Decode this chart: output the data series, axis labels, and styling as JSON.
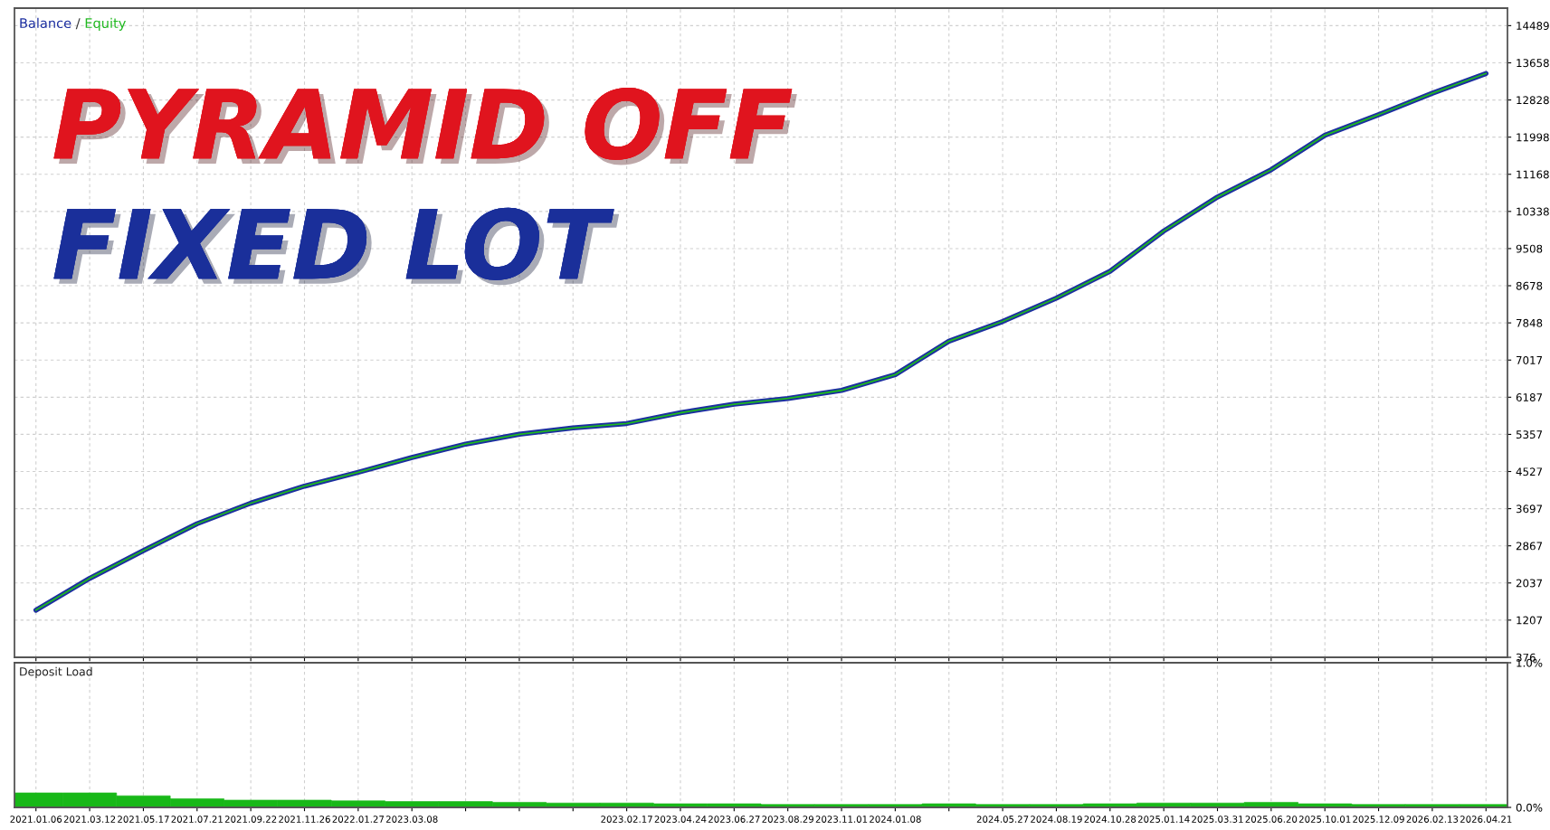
{
  "chart_data": [
    {
      "type": "line",
      "legend": "top left",
      "grid": true,
      "tick_labels": "y",
      "annotations": [
        "/",
        "PYRAMID OFF",
        "FIXED LOT"
      ],
      "ylim": [
        376,
        14880
      ],
      "yticks": [
        376,
        1207,
        2037,
        2867,
        3697,
        4527,
        5357,
        6187,
        7017,
        7848,
        8678,
        9508,
        10338,
        11168,
        11998,
        12828,
        13658,
        14489
      ],
      "categories": [
        "2021.01.06",
        "2021.03.12",
        "2021.05.17",
        "2021.07.21",
        "2021.09.22",
        "2021.11.26",
        "2022.01.27",
        "2023.03.08",
        null,
        null,
        null,
        "2023.02.17",
        "2023.04.24",
        "2023.06.27",
        "2023.08.29",
        "2023.11.01",
        "2024.01.08",
        null,
        "2024.05.27",
        "2024.08.19",
        "2024.10.28",
        "2025.01.14",
        "2025.03.31",
        "2025.06.20",
        "2025.10.01",
        "2025.12.09",
        "2026.02.13",
        "2026.04.21"
      ],
      "series": [
        {
          "name": "Balance",
          "color": "#1c2fa0",
          "values": [
            1430,
            2140,
            2760,
            3360,
            3820,
            4200,
            4510,
            4840,
            5140,
            5360,
            5500,
            5600,
            5840,
            6030,
            6160,
            6340,
            6690,
            7440,
            7880,
            8400,
            9000,
            9900,
            10660,
            11270,
            12040,
            12500,
            12980,
            13420
          ]
        },
        {
          "name": "Equity",
          "color": "#1fb81f",
          "values": [
            1430,
            2140,
            2760,
            3360,
            3820,
            4200,
            4510,
            4840,
            5140,
            5360,
            5500,
            5600,
            5840,
            6030,
            6160,
            6340,
            6690,
            7440,
            7880,
            8400,
            9000,
            9900,
            10660,
            11270,
            12040,
            12500,
            12980,
            13420
          ]
        }
      ]
    },
    {
      "type": "bar",
      "title": "Deposit Load",
      "grid": true,
      "ylim": [
        0,
        1
      ],
      "yticks": [
        {
          "value": 0,
          "label": "0.0%"
        },
        {
          "value": 1,
          "label": "1.0%"
        }
      ],
      "categories": [
        "2021.01.06",
        "2021.03.12",
        "2021.05.17",
        "2021.07.21",
        "2021.09.22",
        "2021.11.26",
        "2022.01.27",
        "2023.03.08",
        null,
        null,
        null,
        "2023.02.17",
        "2023.04.24",
        "2023.06.27",
        "2023.08.29",
        "2023.11.01",
        "2024.01.08",
        null,
        "2024.05.27",
        "2024.08.19",
        "2024.10.28",
        "2025.01.14",
        "2025.03.31",
        "2025.06.20",
        "2025.10.01",
        "2025.12.09",
        "2026.02.13",
        "2026.04.21"
      ],
      "color": "#18b818",
      "values": [
        0.1,
        0.1,
        0.08,
        0.06,
        0.05,
        0.05,
        0.045,
        0.04,
        0.04,
        0.035,
        0.03,
        0.03,
        0.025,
        0.025,
        0.02,
        0.02,
        0.02,
        0.025,
        0.02,
        0.02,
        0.025,
        0.03,
        0.03,
        0.035,
        0.025,
        0.02,
        0.02,
        0.02
      ]
    }
  ]
}
